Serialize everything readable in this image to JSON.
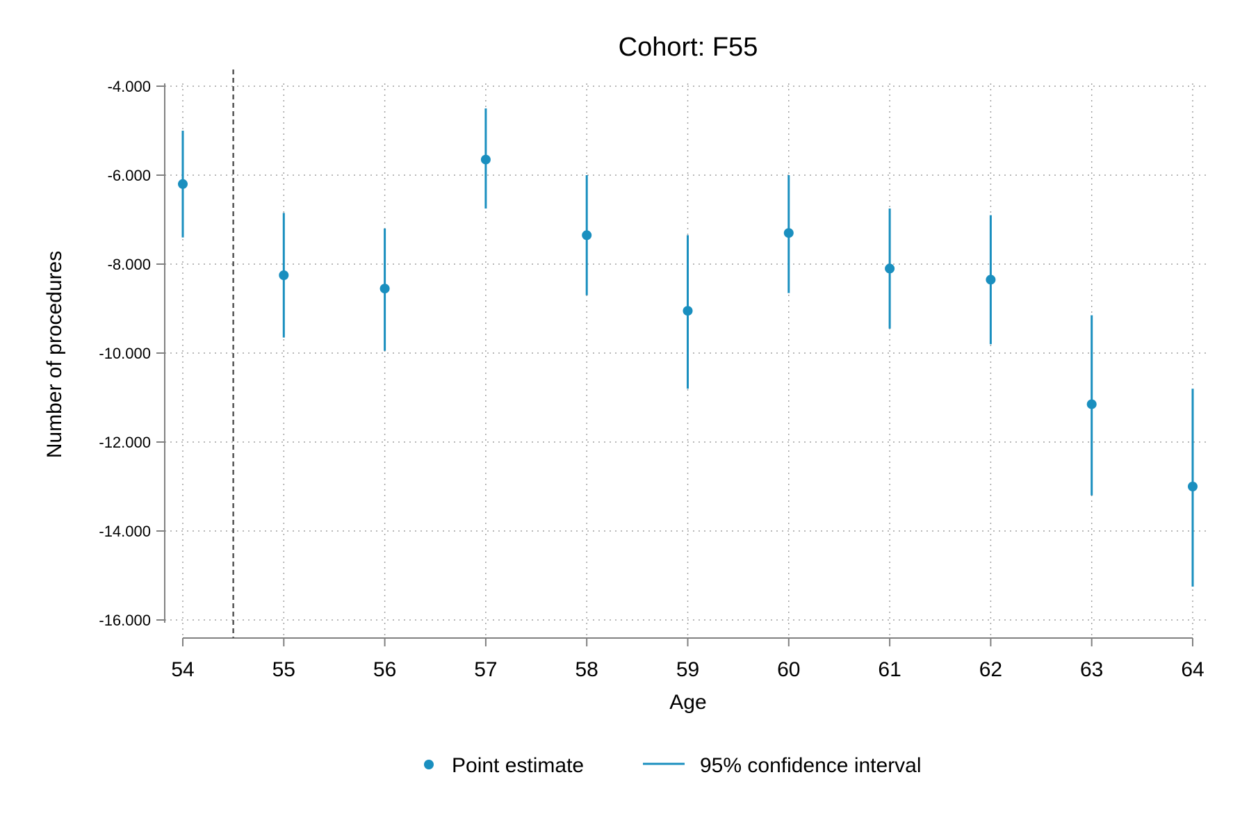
{
  "chart_data": {
    "type": "scatter",
    "title": "Cohort: F55",
    "xlabel": "Age",
    "ylabel": "Number of procedures",
    "x": [
      54,
      55,
      56,
      57,
      58,
      59,
      60,
      61,
      62,
      63,
      64
    ],
    "x_tick_labels": [
      "54",
      "55",
      "56",
      "57",
      "58",
      "59",
      "60",
      "61",
      "62",
      "63",
      "64"
    ],
    "y_ticks": [
      -4000,
      -6000,
      -8000,
      -10000,
      -12000,
      -14000,
      -16000
    ],
    "y_tick_labels": [
      "-4.000",
      "-6.000",
      "-8.000",
      "-10.000",
      "-12.000",
      "-14.000",
      "-16.000"
    ],
    "xlim": [
      54,
      64
    ],
    "ylim": [
      -16400,
      -3600
    ],
    "grid": true,
    "reference_line_x": 54.5,
    "series": [
      {
        "name": "Point estimate",
        "type": "point",
        "values": [
          -6200,
          -8250,
          -8550,
          -5650,
          -7350,
          -9050,
          -7300,
          -8100,
          -8350,
          -11150,
          -13000
        ]
      },
      {
        "name": "95% confidence interval",
        "type": "range",
        "lower": [
          -7400,
          -9650,
          -9950,
          -6750,
          -8700,
          -10800,
          -8650,
          -9450,
          -9800,
          -13200,
          -15250
        ],
        "upper": [
          -5000,
          -6850,
          -7200,
          -4500,
          -6000,
          -7350,
          -6000,
          -6750,
          -6900,
          -9150,
          -10800
        ]
      }
    ],
    "legend": {
      "position": "bottom",
      "entries": [
        "Point estimate",
        "95% confidence interval"
      ]
    },
    "colors": {
      "series": "#1a8fbf",
      "axis": "#808080",
      "grid": "#a0a0a0",
      "reference_line": "#555555"
    }
  }
}
